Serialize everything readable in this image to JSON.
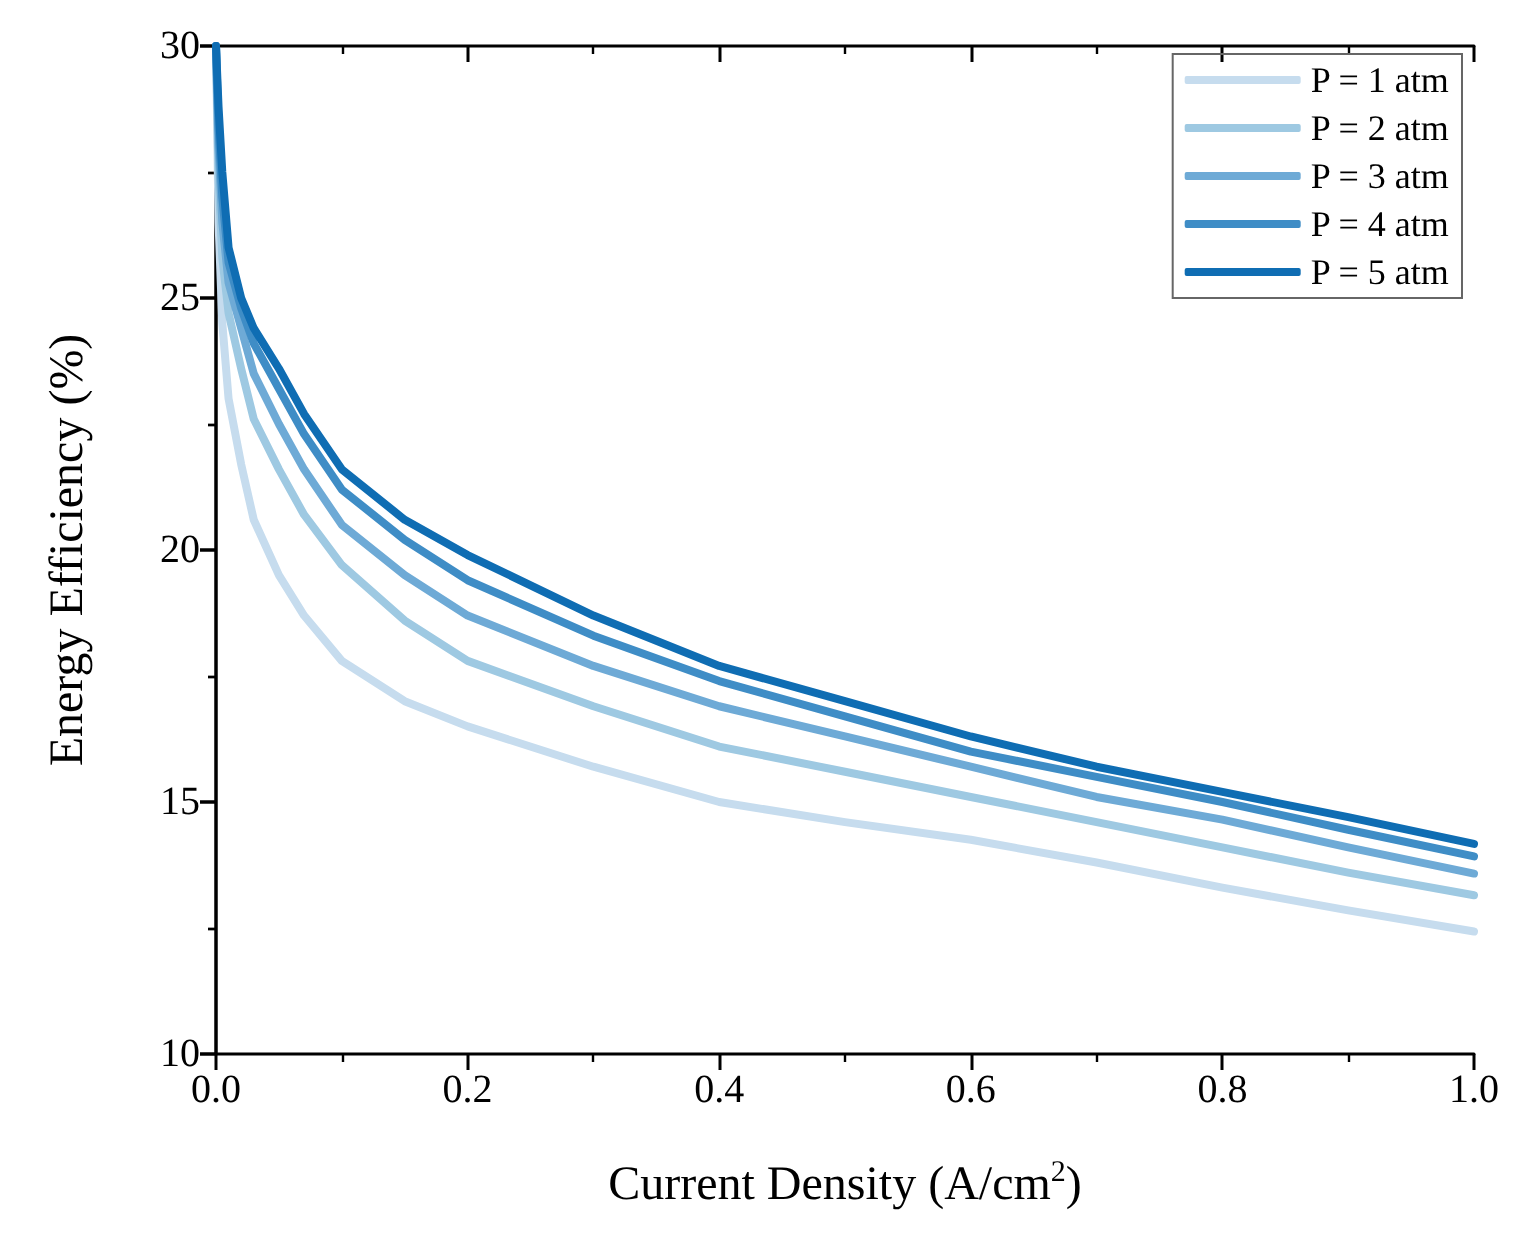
{
  "chart_data": {
    "type": "line",
    "xlabel": "Current Density (A/cm$^{2}$)",
    "ylabel": "Energy Efficiency (%)",
    "legend": "top right",
    "xlim": [
      0,
      1
    ],
    "ylim": [
      10,
      30
    ],
    "xticks": [
      {
        "value": 0,
        "label": "0.0"
      },
      0.2,
      0.4,
      0.6,
      0.8,
      {
        "value": 1,
        "label": "1.0"
      }
    ],
    "yticks": [
      10,
      15,
      20,
      25,
      30
    ],
    "x": [
      0,
      0.002,
      0.005,
      0.01,
      0.02,
      0.03,
      0.05,
      0.07,
      0.1,
      0.15,
      0.2,
      0.3,
      0.4,
      0.5,
      0.6,
      0.7,
      0.8,
      0.9,
      1.0
    ],
    "series": [
      {
        "name": "P = 1 atm",
        "color": "#c6dcee",
        "values": [
          30,
          26.5,
          24.5,
          23.0,
          21.7,
          20.6,
          19.5,
          18.7,
          17.8,
          17.0,
          16.5,
          15.7,
          15.0,
          14.6,
          14.25,
          13.8,
          13.3,
          12.85,
          12.43
        ]
      },
      {
        "name": "P = 2 atm",
        "color": "#9ec9e2",
        "values": [
          30,
          27.4,
          25.8,
          24.7,
          23.6,
          22.6,
          21.6,
          20.7,
          19.7,
          18.6,
          17.8,
          16.9,
          16.1,
          15.6,
          15.1,
          14.6,
          14.1,
          13.6,
          13.15
        ]
      },
      {
        "name": "P = 3 atm",
        "color": "#6eaad6",
        "values": [
          30,
          28.0,
          26.5,
          25.3,
          24.4,
          23.5,
          22.5,
          21.6,
          20.5,
          19.5,
          18.7,
          17.7,
          16.9,
          16.3,
          15.7,
          15.1,
          14.65,
          14.1,
          13.58
        ]
      },
      {
        "name": "P = 4 atm",
        "color": "#3f8dc6",
        "values": [
          30,
          28.4,
          27.0,
          25.7,
          24.8,
          24.1,
          23.2,
          22.3,
          21.2,
          20.2,
          19.4,
          18.3,
          17.4,
          16.7,
          16.0,
          15.5,
          15.0,
          14.45,
          13.92
        ]
      },
      {
        "name": "P = 5 atm",
        "color": "#0f6db3",
        "values": [
          30,
          28.8,
          27.5,
          26.0,
          25.0,
          24.4,
          23.6,
          22.7,
          21.6,
          20.6,
          19.9,
          18.7,
          17.7,
          17.0,
          16.3,
          15.7,
          15.2,
          14.7,
          14.17
        ]
      }
    ]
  }
}
